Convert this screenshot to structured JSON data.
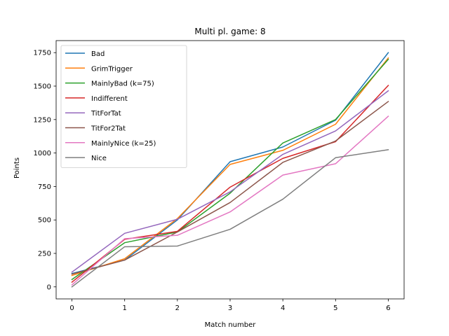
{
  "chart_data": {
    "type": "line",
    "title": "Multi pl. game: 8",
    "xlabel": "Match number",
    "ylabel": "Points",
    "x": [
      0,
      1,
      2,
      3,
      4,
      5,
      6
    ],
    "xlim": [
      -0.3,
      6.3
    ],
    "ylim": [
      -90,
      1840
    ],
    "xticks": [
      0,
      1,
      2,
      3,
      4,
      5,
      6
    ],
    "yticks": [
      0,
      250,
      500,
      750,
      1000,
      1250,
      1500,
      1750
    ],
    "grid": false,
    "legend_position": "top-left",
    "series": [
      {
        "name": "Bad",
        "color": "#1f77b4",
        "values": [
          100,
          200,
          500,
          935,
          1045,
          1245,
          1750
        ]
      },
      {
        "name": "GrimTrigger",
        "color": "#ff7f0e",
        "values": [
          85,
          210,
          510,
          915,
          1020,
          1215,
          1710
        ]
      },
      {
        "name": "MainlyBad (k=75)",
        "color": "#2ca02c",
        "values": [
          55,
          330,
          410,
          700,
          1075,
          1250,
          1700
        ]
      },
      {
        "name": "Indifferent",
        "color": "#d62728",
        "values": [
          35,
          355,
          415,
          745,
          960,
          1085,
          1505
        ]
      },
      {
        "name": "TitForTat",
        "color": "#9467bd",
        "values": [
          110,
          400,
          505,
          710,
          990,
          1165,
          1465
        ]
      },
      {
        "name": "TitFor2Tat",
        "color": "#8c564b",
        "values": [
          95,
          200,
          410,
          630,
          930,
          1090,
          1385
        ]
      },
      {
        "name": "MainlyNice (k=25)",
        "color": "#e377c2",
        "values": [
          15,
          360,
          385,
          560,
          835,
          920,
          1275
        ]
      },
      {
        "name": "Nice",
        "color": "#7f7f7f",
        "values": [
          0,
          300,
          305,
          430,
          655,
          965,
          1025
        ]
      }
    ]
  }
}
